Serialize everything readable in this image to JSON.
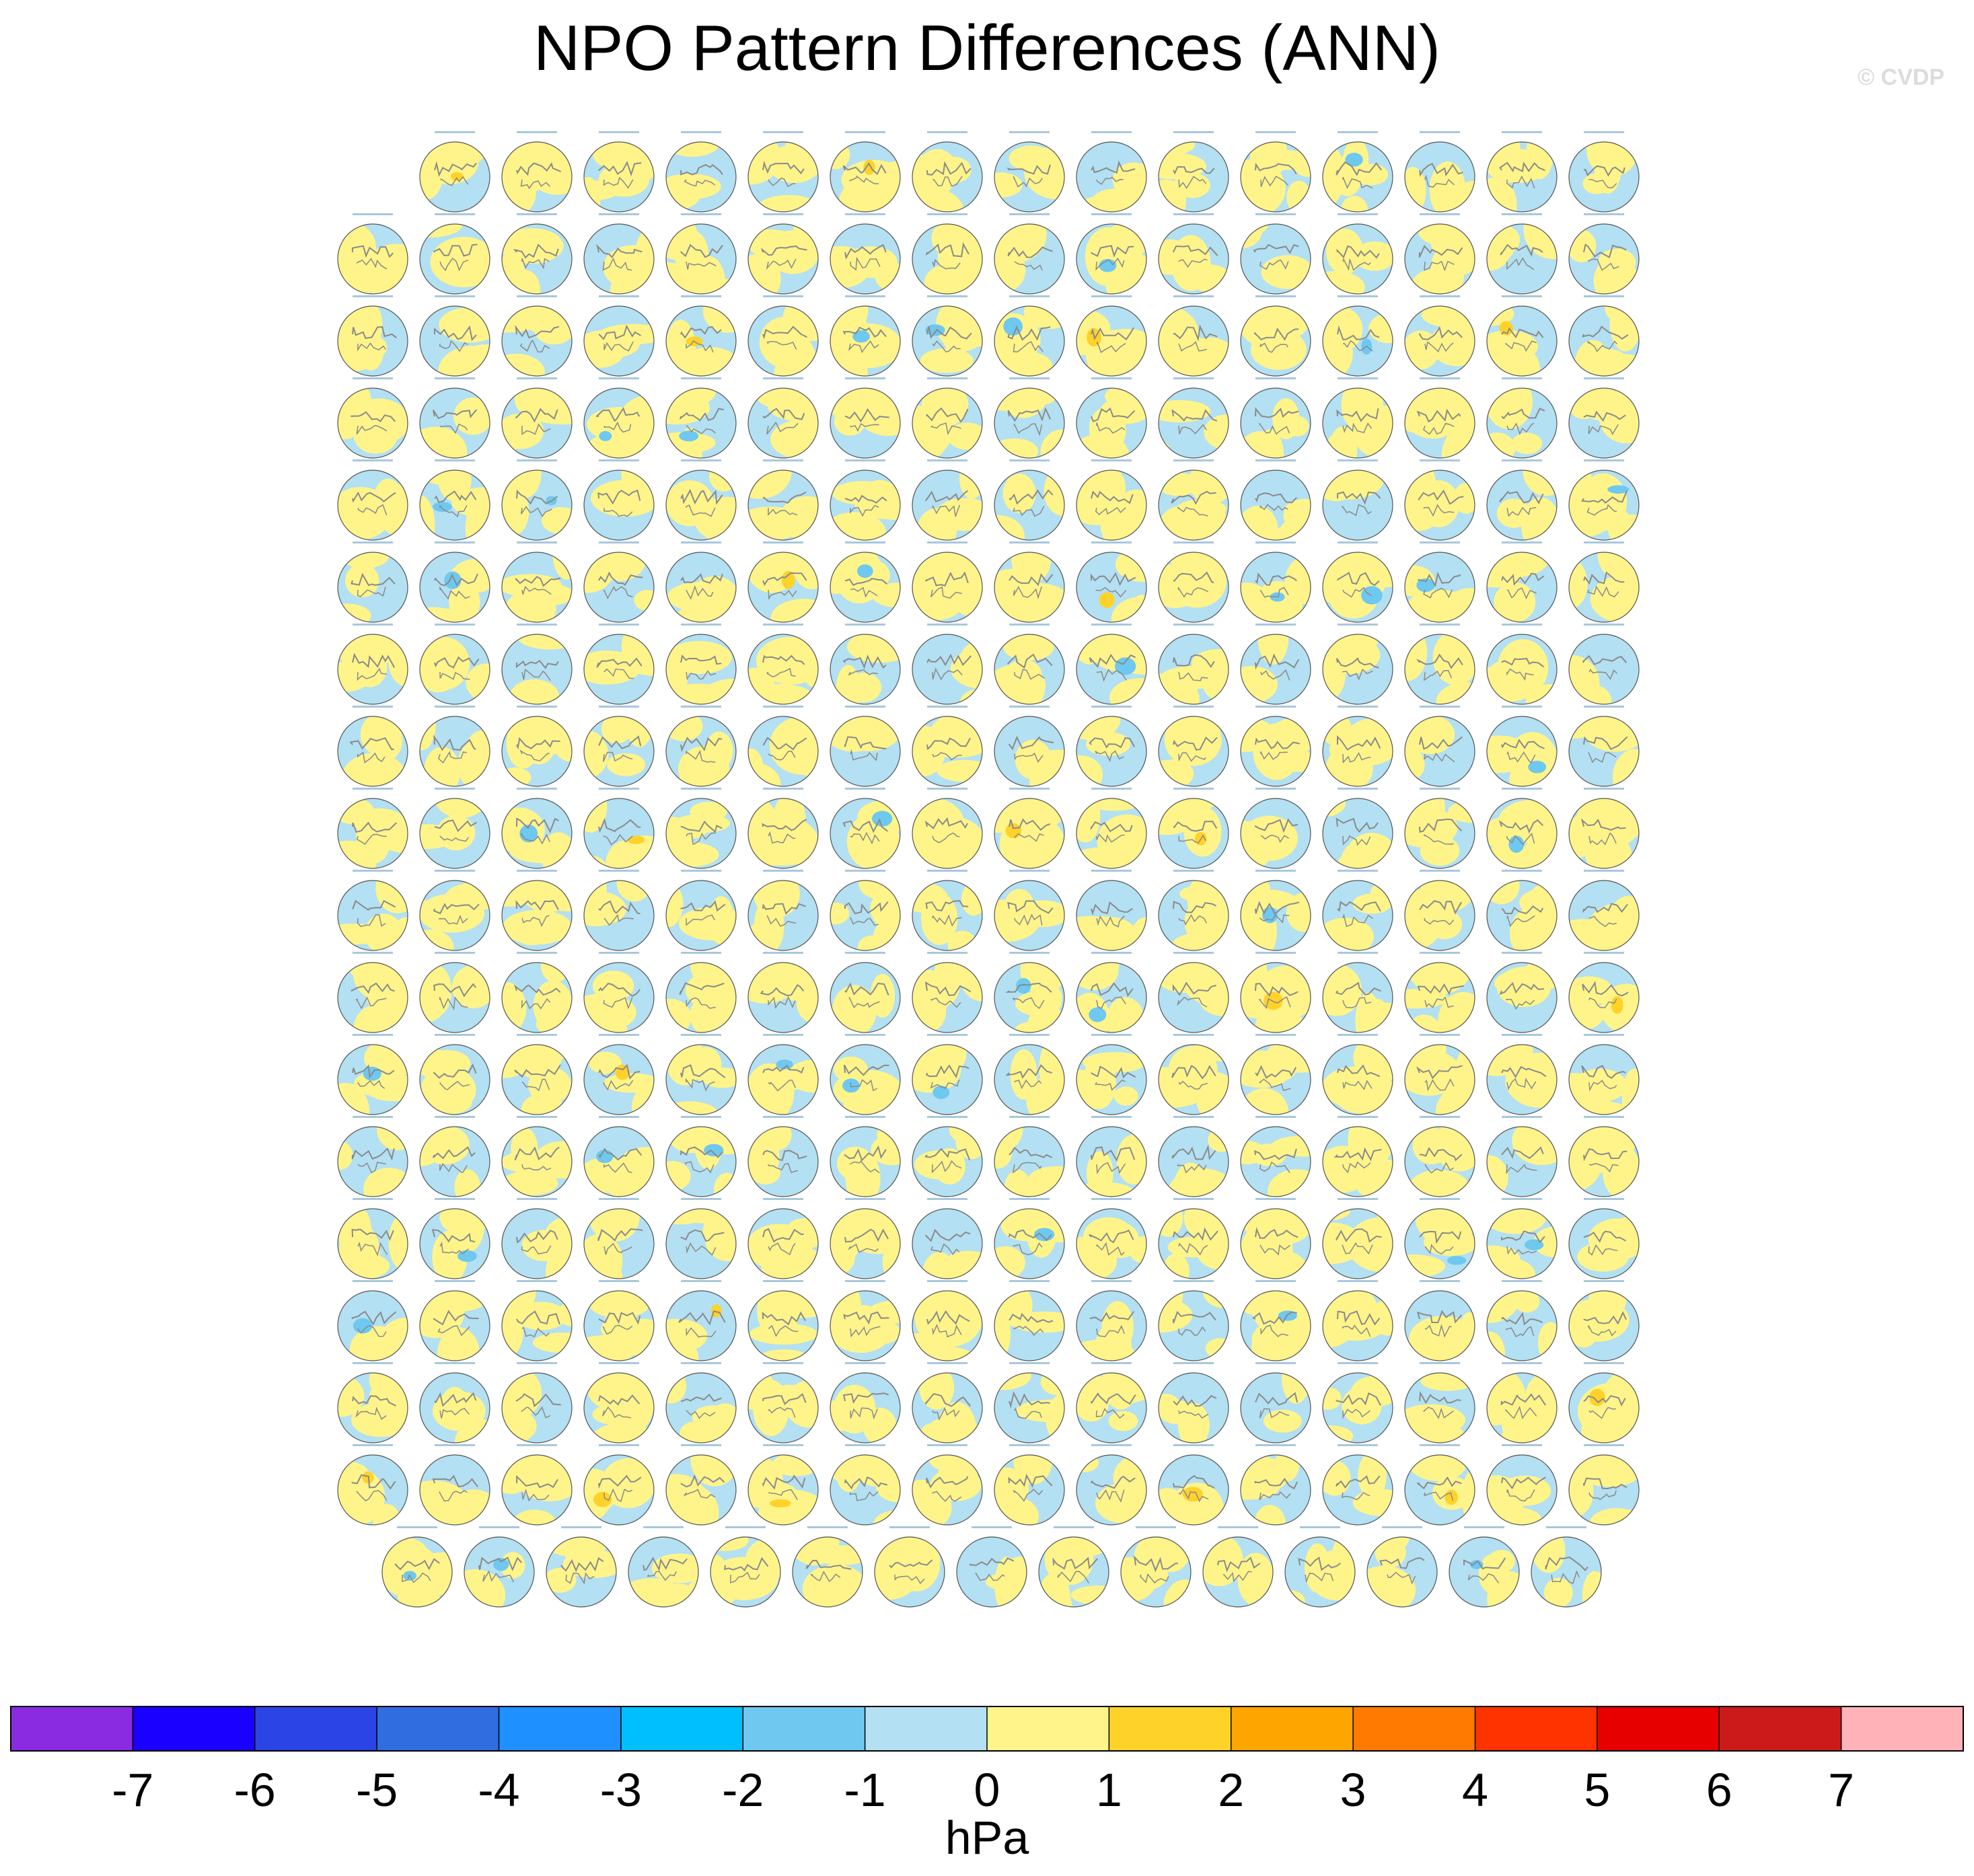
{
  "title": "NPO Pattern Differences (ANN)",
  "watermark": "© CVDP",
  "chart_data": {
    "type": "heatmap",
    "title": "NPO Pattern Differences (ANN)",
    "description_of_panels": "",
    "panel_grid": {
      "row_counts": [
        15,
        16,
        16,
        16,
        16,
        16,
        16,
        16,
        16,
        16,
        16,
        16,
        16,
        16,
        16,
        16,
        16,
        15
      ]
    },
    "colorbar": {
      "label": "hPa",
      "tick_labels": [
        "-7",
        "-6",
        "-5",
        "-4",
        "-3",
        "-2",
        "-1",
        "0",
        "1",
        "2",
        "3",
        "4",
        "5",
        "6",
        "7"
      ],
      "colors": [
        "#8a2be2",
        "#1a00ff",
        "#2b44e6",
        "#2f6de0",
        "#1e90ff",
        "#00bfff",
        "#6ec8f0",
        "#b3e0f2",
        "#fff48a",
        "#ffd22a",
        "#ffa500",
        "#ff7a00",
        "#ff3300",
        "#e60000",
        "#cc1a1a",
        "#ffb3b8"
      ]
    }
  }
}
